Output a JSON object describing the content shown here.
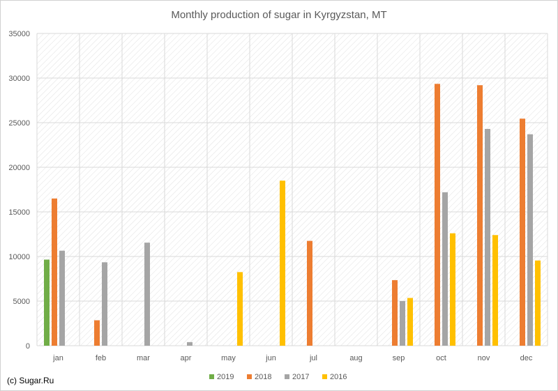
{
  "chart_data": {
    "type": "bar",
    "title": "Monthly production of sugar in Kyrgyzstan, MT",
    "categories": [
      "jan",
      "feb",
      "mar",
      "apr",
      "may",
      "jun",
      "jul",
      "aug",
      "sep",
      "oct",
      "nov",
      "dec"
    ],
    "series": [
      {
        "name": "2019",
        "color": "#70ad47",
        "values": [
          9650,
          null,
          null,
          null,
          null,
          null,
          null,
          null,
          null,
          null,
          null,
          null
        ]
      },
      {
        "name": "2018",
        "color": "#ed7d31",
        "values": [
          16500,
          2850,
          null,
          null,
          null,
          null,
          11750,
          null,
          7350,
          29350,
          29200,
          25450
        ]
      },
      {
        "name": "2017",
        "color": "#a5a5a5",
        "values": [
          10650,
          9350,
          11550,
          400,
          null,
          null,
          null,
          null,
          5000,
          17200,
          24300,
          23700
        ]
      },
      {
        "name": "2016",
        "color": "#ffc000",
        "values": [
          null,
          null,
          null,
          null,
          8250,
          18500,
          null,
          null,
          5350,
          12600,
          12400,
          9550
        ]
      }
    ],
    "ylim": [
      0,
      35000
    ],
    "yticks": [
      0,
      5000,
      10000,
      15000,
      20000,
      25000,
      30000,
      35000
    ],
    "grid": true,
    "legend_position": "bottom"
  },
  "footer": {
    "credit": "(c) Sugar.Ru"
  }
}
